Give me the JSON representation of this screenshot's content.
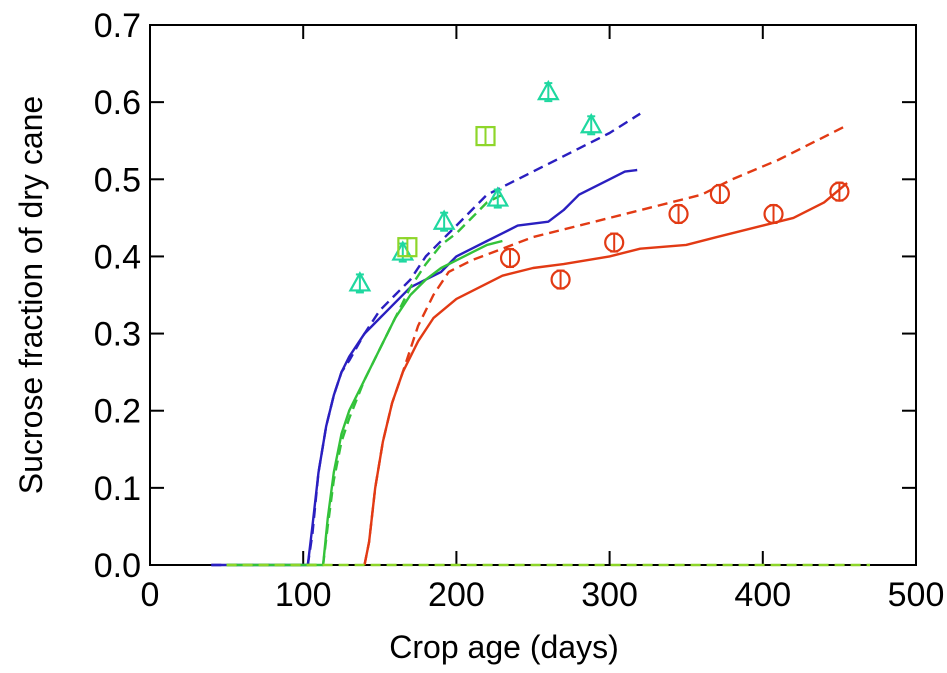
{
  "colors": {
    "blue": "#2a1fc0",
    "green": "#33c23a",
    "red": "#e23a14",
    "teal": "#1fd8a0",
    "lime": "#8ed62a",
    "axis": "#000000"
  },
  "chart_data": {
    "type": "line",
    "title": "",
    "xlabel": "Crop age (days)",
    "ylabel": "Sucrose fraction of dry cane",
    "xlim": [
      0,
      500
    ],
    "ylim": [
      0,
      0.7
    ],
    "xticks": [
      "0",
      "100",
      "200",
      "300",
      "400",
      "500"
    ],
    "yticks": [
      "0.0",
      "0.1",
      "0.2",
      "0.3",
      "0.4",
      "0.5",
      "0.6",
      "0.7"
    ],
    "grid": false,
    "legend": "none",
    "series": [
      {
        "color": "blue",
        "style": "solid",
        "points": [
          [
            40,
            0
          ],
          [
            103,
            0
          ],
          [
            106,
            0.05
          ],
          [
            110,
            0.12
          ],
          [
            115,
            0.18
          ],
          [
            120,
            0.22
          ],
          [
            125,
            0.25
          ],
          [
            130,
            0.27
          ],
          [
            140,
            0.3
          ],
          [
            150,
            0.32
          ],
          [
            160,
            0.34
          ],
          [
            170,
            0.36
          ],
          [
            180,
            0.37
          ],
          [
            190,
            0.38
          ],
          [
            200,
            0.4
          ],
          [
            210,
            0.41
          ],
          [
            220,
            0.42
          ],
          [
            230,
            0.43
          ],
          [
            240,
            0.44
          ],
          [
            260,
            0.445
          ],
          [
            270,
            0.46
          ],
          [
            280,
            0.48
          ],
          [
            300,
            0.5
          ],
          [
            310,
            0.51
          ],
          [
            318,
            0.512
          ]
        ]
      },
      {
        "color": "blue",
        "style": "dashed",
        "points": [
          [
            40,
            0
          ],
          [
            103,
            0
          ],
          [
            106,
            0.04
          ],
          [
            110,
            0.12
          ],
          [
            115,
            0.18
          ],
          [
            120,
            0.22
          ],
          [
            125,
            0.25
          ],
          [
            130,
            0.265
          ],
          [
            140,
            0.3
          ],
          [
            150,
            0.33
          ],
          [
            160,
            0.35
          ],
          [
            170,
            0.37
          ],
          [
            180,
            0.4
          ],
          [
            190,
            0.42
          ],
          [
            200,
            0.44
          ],
          [
            210,
            0.46
          ],
          [
            220,
            0.48
          ],
          [
            230,
            0.49
          ],
          [
            240,
            0.5
          ],
          [
            260,
            0.52
          ],
          [
            280,
            0.54
          ],
          [
            300,
            0.56
          ],
          [
            320,
            0.585
          ]
        ]
      },
      {
        "color": "green",
        "style": "solid",
        "points": [
          [
            50,
            0
          ],
          [
            113,
            0
          ],
          [
            116,
            0.06
          ],
          [
            120,
            0.12
          ],
          [
            125,
            0.17
          ],
          [
            130,
            0.2
          ],
          [
            140,
            0.24
          ],
          [
            150,
            0.28
          ],
          [
            160,
            0.32
          ],
          [
            170,
            0.35
          ],
          [
            180,
            0.37
          ],
          [
            190,
            0.385
          ],
          [
            200,
            0.395
          ],
          [
            210,
            0.405
          ],
          [
            220,
            0.415
          ],
          [
            230,
            0.42
          ]
        ]
      },
      {
        "color": "green",
        "style": "dashed",
        "points": [
          [
            50,
            0
          ],
          [
            113,
            0
          ],
          [
            116,
            0.05
          ],
          [
            120,
            0.11
          ],
          [
            125,
            0.16
          ],
          [
            130,
            0.19
          ],
          [
            140,
            0.24
          ],
          [
            150,
            0.28
          ],
          [
            160,
            0.32
          ],
          [
            170,
            0.36
          ],
          [
            180,
            0.39
          ],
          [
            190,
            0.415
          ],
          [
            200,
            0.43
          ],
          [
            210,
            0.45
          ],
          [
            220,
            0.47
          ],
          [
            230,
            0.48
          ]
        ]
      },
      {
        "color": "red",
        "style": "solid",
        "points": [
          [
            140,
            0
          ],
          [
            143,
            0.03
          ],
          [
            147,
            0.1
          ],
          [
            152,
            0.16
          ],
          [
            158,
            0.21
          ],
          [
            165,
            0.25
          ],
          [
            175,
            0.29
          ],
          [
            185,
            0.32
          ],
          [
            200,
            0.345
          ],
          [
            215,
            0.36
          ],
          [
            230,
            0.375
          ],
          [
            250,
            0.385
          ],
          [
            270,
            0.39
          ],
          [
            300,
            0.4
          ],
          [
            320,
            0.41
          ],
          [
            350,
            0.415
          ],
          [
            370,
            0.425
          ],
          [
            400,
            0.44
          ],
          [
            420,
            0.45
          ],
          [
            440,
            0.47
          ],
          [
            455,
            0.495
          ]
        ]
      },
      {
        "color": "red",
        "style": "dashed",
        "points": [
          [
            140,
            0
          ],
          [
            143,
            0.03
          ],
          [
            147,
            0.1
          ],
          [
            152,
            0.16
          ],
          [
            158,
            0.21
          ],
          [
            165,
            0.25
          ],
          [
            175,
            0.31
          ],
          [
            185,
            0.35
          ],
          [
            195,
            0.38
          ],
          [
            210,
            0.395
          ],
          [
            230,
            0.41
          ],
          [
            250,
            0.425
          ],
          [
            280,
            0.44
          ],
          [
            300,
            0.45
          ],
          [
            330,
            0.465
          ],
          [
            360,
            0.48
          ],
          [
            380,
            0.5
          ],
          [
            410,
            0.525
          ],
          [
            430,
            0.545
          ],
          [
            455,
            0.57
          ]
        ]
      },
      {
        "color": "lime",
        "style": "dashed",
        "points": [
          [
            50,
            0
          ],
          [
            470,
            0
          ]
        ]
      }
    ],
    "observations": [
      {
        "color": "teal",
        "marker": "triangle",
        "points": [
          [
            137,
            0.365
          ],
          [
            165,
            0.405
          ],
          [
            192,
            0.445
          ],
          [
            227,
            0.475
          ],
          [
            260,
            0.613
          ],
          [
            288,
            0.57
          ]
        ]
      },
      {
        "color": "lime",
        "marker": "square",
        "points": [
          [
            168,
            0.412
          ],
          [
            219,
            0.556
          ]
        ]
      },
      {
        "color": "red",
        "marker": "circle",
        "points": [
          [
            235,
            0.398
          ],
          [
            268,
            0.37
          ],
          [
            303,
            0.418
          ],
          [
            345,
            0.455
          ],
          [
            372,
            0.481
          ],
          [
            407,
            0.455
          ],
          [
            450,
            0.484
          ]
        ]
      }
    ]
  }
}
